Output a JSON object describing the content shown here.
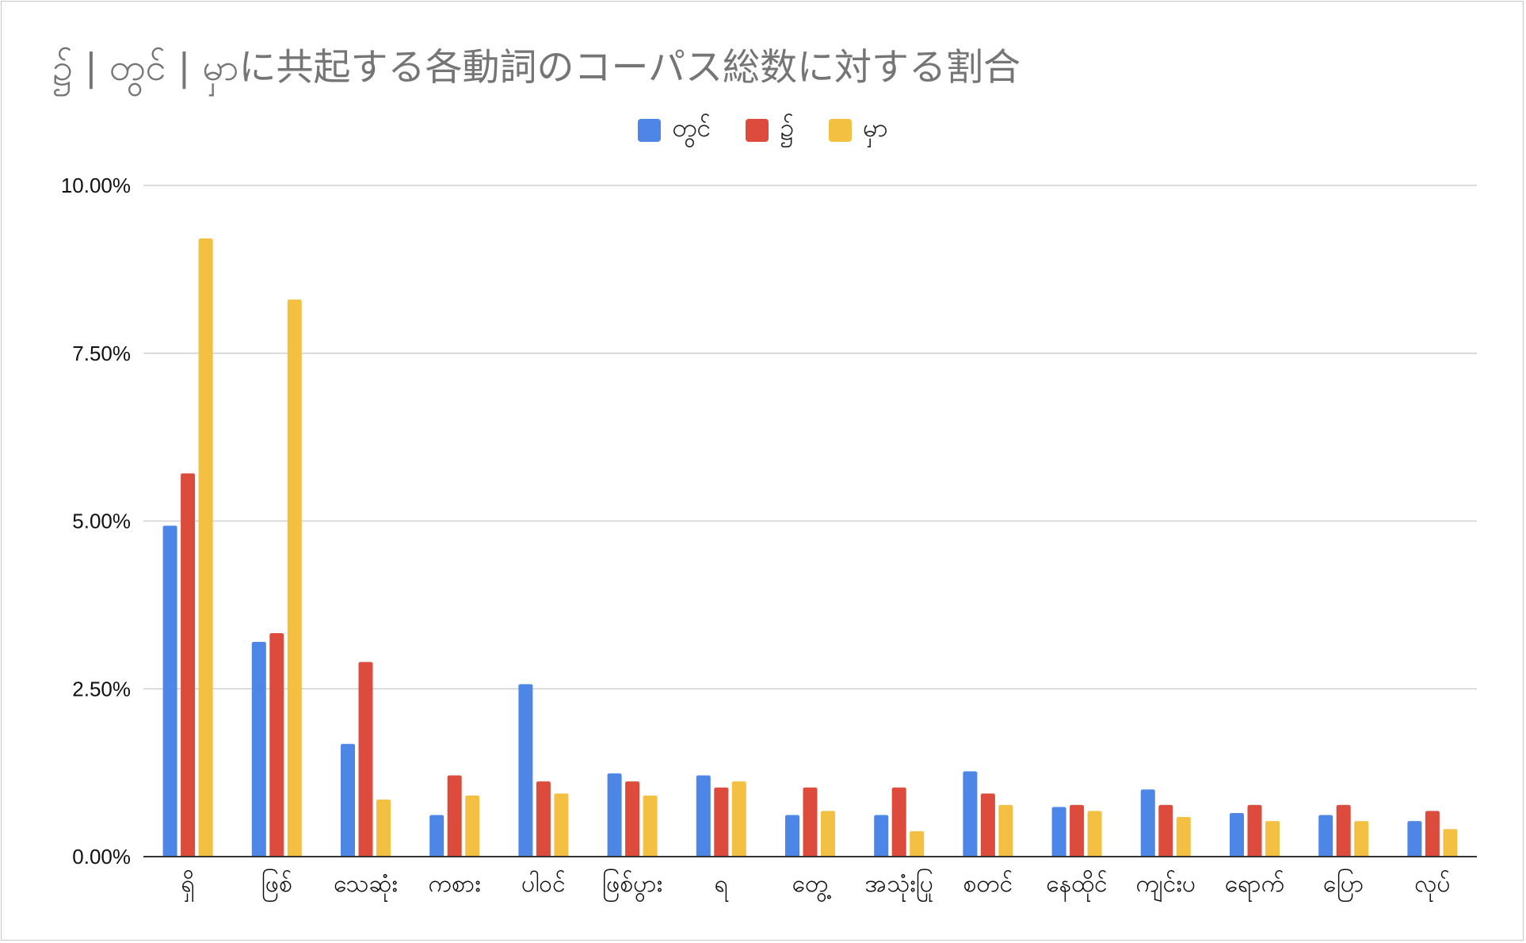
{
  "chart_data": {
    "type": "bar",
    "title": "၌ | တွင် | မှာに共起する各動詞のコーパス総数に対する割合",
    "xlabel": "",
    "ylabel": "",
    "ylim": [
      0,
      10
    ],
    "y_tick_labels": [
      "0.00%",
      "2.50%",
      "5.00%",
      "7.50%",
      "10.00%"
    ],
    "y_tick_values": [
      0,
      2.5,
      5,
      7.5,
      10
    ],
    "grid": true,
    "legend_position": "top-center",
    "categories": [
      "ရှိ",
      "ဖြစ်",
      "သေဆုံး",
      "ကစား",
      "ပါဝင်",
      "ဖြစ်ပွား",
      "ရ",
      "တွေ့",
      "အသုံးပြု",
      "စတင်",
      "နေထိုင်",
      "ကျင်းပ",
      "ရောက်",
      "ပြော",
      "လုပ်"
    ],
    "series": [
      {
        "name": "တွင်",
        "color": "#4e86e8",
        "values": [
          4.93,
          3.2,
          1.68,
          0.62,
          2.57,
          1.24,
          1.21,
          0.62,
          0.62,
          1.27,
          0.74,
          1.0,
          0.65,
          0.62,
          0.53
        ]
      },
      {
        "name": "၌",
        "color": "#dc4b3c",
        "values": [
          5.71,
          3.33,
          2.9,
          1.21,
          1.12,
          1.12,
          1.03,
          1.03,
          1.03,
          0.94,
          0.77,
          0.77,
          0.77,
          0.77,
          0.68
        ]
      },
      {
        "name": "မှာ",
        "color": "#f3c042",
        "values": [
          9.21,
          8.3,
          0.85,
          0.91,
          0.94,
          0.91,
          1.12,
          0.68,
          0.38,
          0.77,
          0.68,
          0.59,
          0.53,
          0.53,
          0.41
        ]
      }
    ]
  }
}
